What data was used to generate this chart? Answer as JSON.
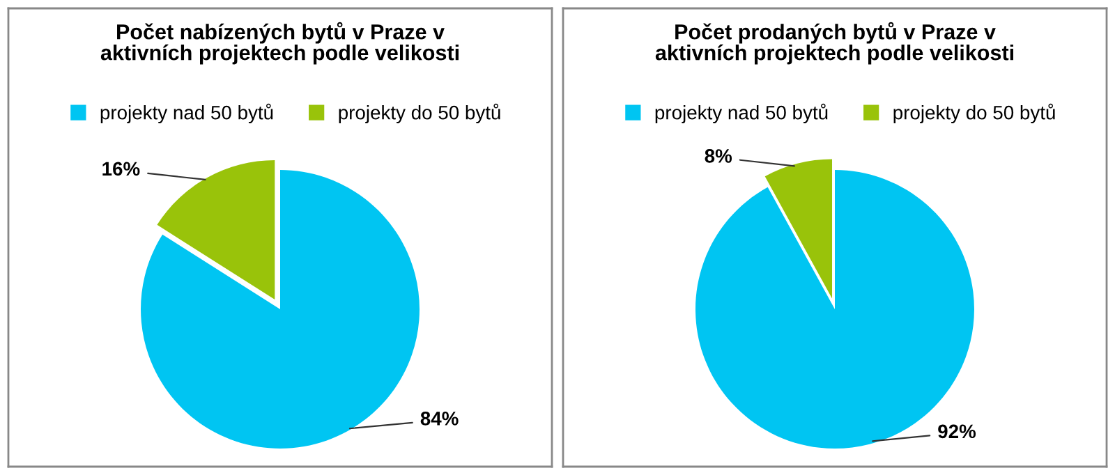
{
  "chart_data": [
    {
      "type": "pie",
      "title": "Počet nabízených bytů v Praze v\naktivních projektech podle velikosti",
      "categories": [
        "projekty nad 50 bytů",
        "projekty do 50 bytů"
      ],
      "values": [
        84,
        16
      ],
      "colors": [
        "#00c5f2",
        "#99c30a"
      ],
      "value_labels": [
        "84%",
        "16%"
      ],
      "legend": "top"
    },
    {
      "type": "pie",
      "title": "Počet prodaných bytů v Praze v\naktivních projektech podle velikosti",
      "categories": [
        "projekty nad 50 bytů",
        "projekty do 50 bytů"
      ],
      "values": [
        92,
        8
      ],
      "colors": [
        "#00c5f2",
        "#99c30a"
      ],
      "value_labels": [
        "92%",
        "8%"
      ],
      "legend": "top"
    }
  ]
}
